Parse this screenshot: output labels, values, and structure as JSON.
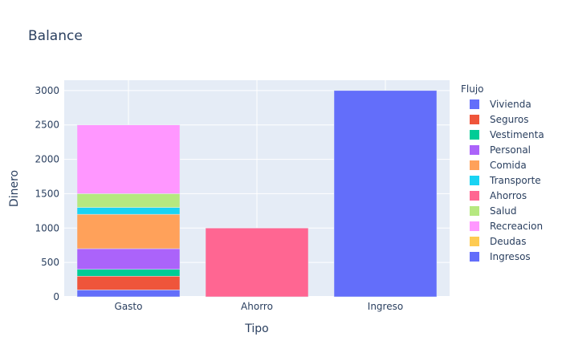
{
  "chart_data": {
    "type": "bar",
    "barmode": "stack",
    "title": "Balance",
    "xlabel": "Tipo",
    "ylabel": "Dinero",
    "categories": [
      "Gasto",
      "Ahorro",
      "Ingreso"
    ],
    "ylim": [
      0,
      3150
    ],
    "yticks": [
      0,
      500,
      1000,
      1500,
      2000,
      2500,
      3000
    ],
    "grid": true,
    "legend_title": "Flujo",
    "legend_position": "right",
    "series": [
      {
        "name": "Vivienda",
        "color": "#636efa",
        "values": [
          100,
          0,
          0
        ]
      },
      {
        "name": "Seguros",
        "color": "#ef553b",
        "values": [
          200,
          0,
          0
        ]
      },
      {
        "name": "Vestimenta",
        "color": "#00cc96",
        "values": [
          100,
          0,
          0
        ]
      },
      {
        "name": "Personal",
        "color": "#ab63fa",
        "values": [
          300,
          0,
          0
        ]
      },
      {
        "name": "Comida",
        "color": "#ffa15a",
        "values": [
          500,
          0,
          0
        ]
      },
      {
        "name": "Transporte",
        "color": "#19d3f3",
        "values": [
          100,
          0,
          0
        ]
      },
      {
        "name": "Ahorros",
        "color": "#ff6692",
        "values": [
          0,
          1000,
          0
        ]
      },
      {
        "name": "Salud",
        "color": "#b6e880",
        "values": [
          200,
          0,
          0
        ]
      },
      {
        "name": "Recreacion",
        "color": "#ff97ff",
        "values": [
          1000,
          0,
          0
        ]
      },
      {
        "name": "Deudas",
        "color": "#fecb52",
        "values": [
          0,
          0,
          0
        ]
      },
      {
        "name": "Ingresos",
        "color": "#636efa",
        "values": [
          0,
          0,
          3000
        ]
      }
    ]
  }
}
